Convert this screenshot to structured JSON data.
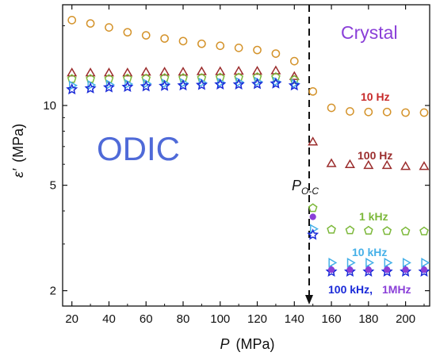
{
  "chart_data": {
    "type": "scatter",
    "xlabel": "P (MPa)",
    "xlabel_var": "P",
    "xlabel_unit": "(MPa)",
    "ylabel": "ε′ (MPa)",
    "ylabel_var": "ε′",
    "ylabel_unit": "(MPa)",
    "xlim": [
      15,
      213
    ],
    "ylim": [
      1.75,
      24
    ],
    "y_scale": "log",
    "x_ticks": [
      20,
      40,
      60,
      80,
      100,
      120,
      140,
      160,
      180,
      200
    ],
    "y_ticks": [
      2,
      5,
      10
    ],
    "transition_x": 148,
    "transition_label_main": "P",
    "transition_label_sub": "O-C",
    "region_labels": {
      "left": "ODIC",
      "right": "Crystal"
    },
    "colors": {
      "10Hz": "#d4932b",
      "100Hz": "#9b2d2d",
      "1kHz": "#7cb83a",
      "10kHz": "#45b0e8",
      "100kHz": "#1a2ad8",
      "1MHz": "#8a3fd8",
      "odic": "#4f6ad8",
      "crystal": "#8a3fd8"
    },
    "annotations": {
      "f10Hz": "10 Hz",
      "f100Hz": "100 Hz",
      "f1kHz": "1 kHz",
      "f10kHz": "10 kHz",
      "f100kHz": "100 kHz,",
      "f1MHz": "1MHz"
    },
    "series": [
      {
        "key": "10Hz",
        "marker": "circle",
        "x": [
          20,
          30,
          40,
          50,
          60,
          70,
          80,
          90,
          100,
          110,
          120,
          130,
          140,
          150,
          160,
          170,
          180,
          190,
          200,
          210
        ],
        "y": [
          21.0,
          20.4,
          19.7,
          18.9,
          18.4,
          17.9,
          17.5,
          17.1,
          16.8,
          16.5,
          16.2,
          15.7,
          14.7,
          11.3,
          9.8,
          9.5,
          9.45,
          9.45,
          9.4,
          9.4
        ]
      },
      {
        "key": "100Hz",
        "marker": "triangle-up",
        "x": [
          20,
          30,
          40,
          50,
          60,
          70,
          80,
          90,
          100,
          110,
          120,
          130,
          140,
          150,
          160,
          170,
          180,
          190,
          200,
          210
        ],
        "y": [
          13.3,
          13.3,
          13.3,
          13.3,
          13.4,
          13.4,
          13.4,
          13.45,
          13.45,
          13.5,
          13.5,
          13.55,
          12.9,
          7.3,
          6.05,
          6.0,
          5.95,
          5.95,
          5.9,
          5.9
        ]
      },
      {
        "key": "1kHz",
        "marker": "pentagon",
        "x": [
          20,
          30,
          40,
          50,
          60,
          70,
          80,
          90,
          100,
          110,
          120,
          130,
          140,
          150,
          160,
          170,
          180,
          190,
          200,
          210
        ],
        "y": [
          12.6,
          12.6,
          12.6,
          12.65,
          12.65,
          12.7,
          12.7,
          12.7,
          12.75,
          12.75,
          12.8,
          12.8,
          12.5,
          4.1,
          3.4,
          3.38,
          3.37,
          3.36,
          3.35,
          3.35
        ]
      },
      {
        "key": "10kHz",
        "marker": "triangle-right",
        "x": [
          20,
          30,
          40,
          50,
          60,
          70,
          80,
          90,
          100,
          110,
          120,
          130,
          140,
          150,
          160,
          170,
          180,
          190,
          200,
          210
        ],
        "y": [
          11.9,
          11.95,
          12.0,
          12.05,
          12.1,
          12.1,
          12.15,
          12.2,
          12.2,
          12.25,
          12.3,
          12.3,
          12.1,
          3.42,
          2.55,
          2.55,
          2.55,
          2.55,
          2.55,
          2.55
        ]
      },
      {
        "key": "100kHz",
        "marker": "star",
        "x": [
          20,
          30,
          40,
          50,
          60,
          70,
          80,
          90,
          100,
          110,
          120,
          130,
          140,
          150,
          160,
          170,
          180,
          190,
          200,
          210
        ],
        "y": [
          11.5,
          11.6,
          11.7,
          11.75,
          11.8,
          11.85,
          11.9,
          11.95,
          12.0,
          12.0,
          12.05,
          12.1,
          11.9,
          3.25,
          2.36,
          2.36,
          2.36,
          2.36,
          2.36,
          2.36
        ]
      },
      {
        "key": "1MHz",
        "marker": "circle-filled",
        "x": [
          150,
          160,
          170,
          180,
          190,
          200,
          210
        ],
        "y": [
          3.8,
          2.4,
          2.4,
          2.4,
          2.4,
          2.4,
          2.4
        ]
      }
    ]
  }
}
